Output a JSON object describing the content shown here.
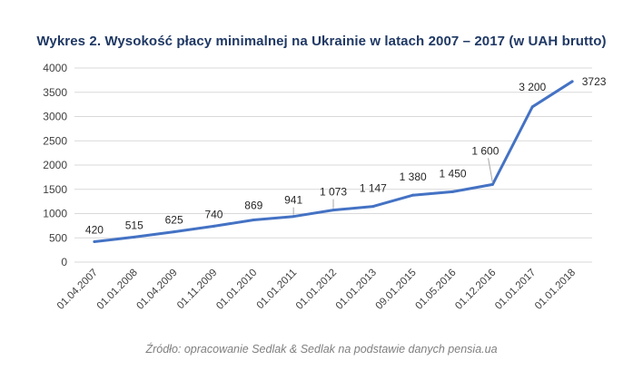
{
  "chart_data": {
    "type": "line",
    "title": "Wykres 2. Wysokość płacy minimalnej na Ukrainie w latach 2007 – 2017 (w UAH brutto)",
    "source": "Źródło: opracowanie Sedlak & Sedlak na podstawie danych pensia.ua",
    "categories": [
      "01.04.2007",
      "01.01.2008",
      "01.04.2009",
      "01.11.2009",
      "01.01.2010",
      "01.01.2011",
      "01.01.2012",
      "01.01.2013",
      "09.01.2015",
      "01.05.2016",
      "01.12.2016",
      "01.01.2017",
      "01.01.2018"
    ],
    "values": [
      420,
      515,
      625,
      740,
      869,
      941,
      1073,
      1147,
      1380,
      1450,
      1600,
      3200,
      3723
    ],
    "data_labels": [
      "420",
      "515",
      "625",
      "740",
      "869",
      "941",
      "1 073",
      "1 147",
      "1 380",
      "1 450",
      "1 600",
      "3 200",
      "3723"
    ],
    "ylim": [
      0,
      4000
    ],
    "yticks": [
      0,
      500,
      1000,
      1500,
      2000,
      2500,
      3000,
      3500,
      4000
    ],
    "grid": true,
    "line_color": "#4472c4",
    "xlabel": "",
    "ylabel": ""
  }
}
